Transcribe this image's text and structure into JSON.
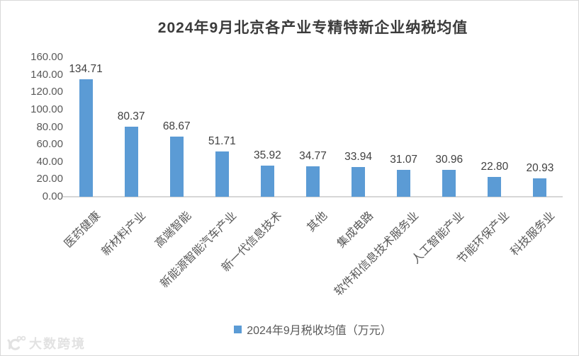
{
  "chart_data": {
    "type": "bar",
    "title": "2024年9月北京各产业专精特新企业纳税均值",
    "categories": [
      "医药健康",
      "新材料产业",
      "高端智能",
      "新能源智能汽车产业",
      "新一代信息技术",
      "其他",
      "集成电路",
      "软件和信息技术服务业",
      "人工智能产业",
      "节能环保产业",
      "科技服务业"
    ],
    "values": [
      134.71,
      80.37,
      68.67,
      51.71,
      35.92,
      34.77,
      33.94,
      31.07,
      30.96,
      22.8,
      20.93
    ],
    "value_labels": [
      "134.71",
      "80.37",
      "68.67",
      "51.71",
      "35.92",
      "34.77",
      "33.94",
      "31.07",
      "30.96",
      "22.80",
      "20.93"
    ],
    "y_ticks": [
      "160.00",
      "140.00",
      "120.00",
      "100.00",
      "80.00",
      "60.00",
      "40.00",
      "20.00",
      "0.00"
    ],
    "ylim": [
      0,
      160
    ],
    "xlabel": "",
    "ylabel": "",
    "grid": false,
    "legend_position": "bottom",
    "legend": [
      "2024年9月税收均值（万元）"
    ],
    "bar_color": "#5B9BD5"
  },
  "colors": {
    "accent": "#5B9BD5",
    "axis_line": "#D6D6D6",
    "tick_text": "#595959",
    "value_text": "#404040",
    "title_text": "#3B3B3B",
    "watermark": "#E2E2E2"
  },
  "watermark": {
    "logo_icon": "big-data-crossborder-logo",
    "text": "大数跨境"
  }
}
